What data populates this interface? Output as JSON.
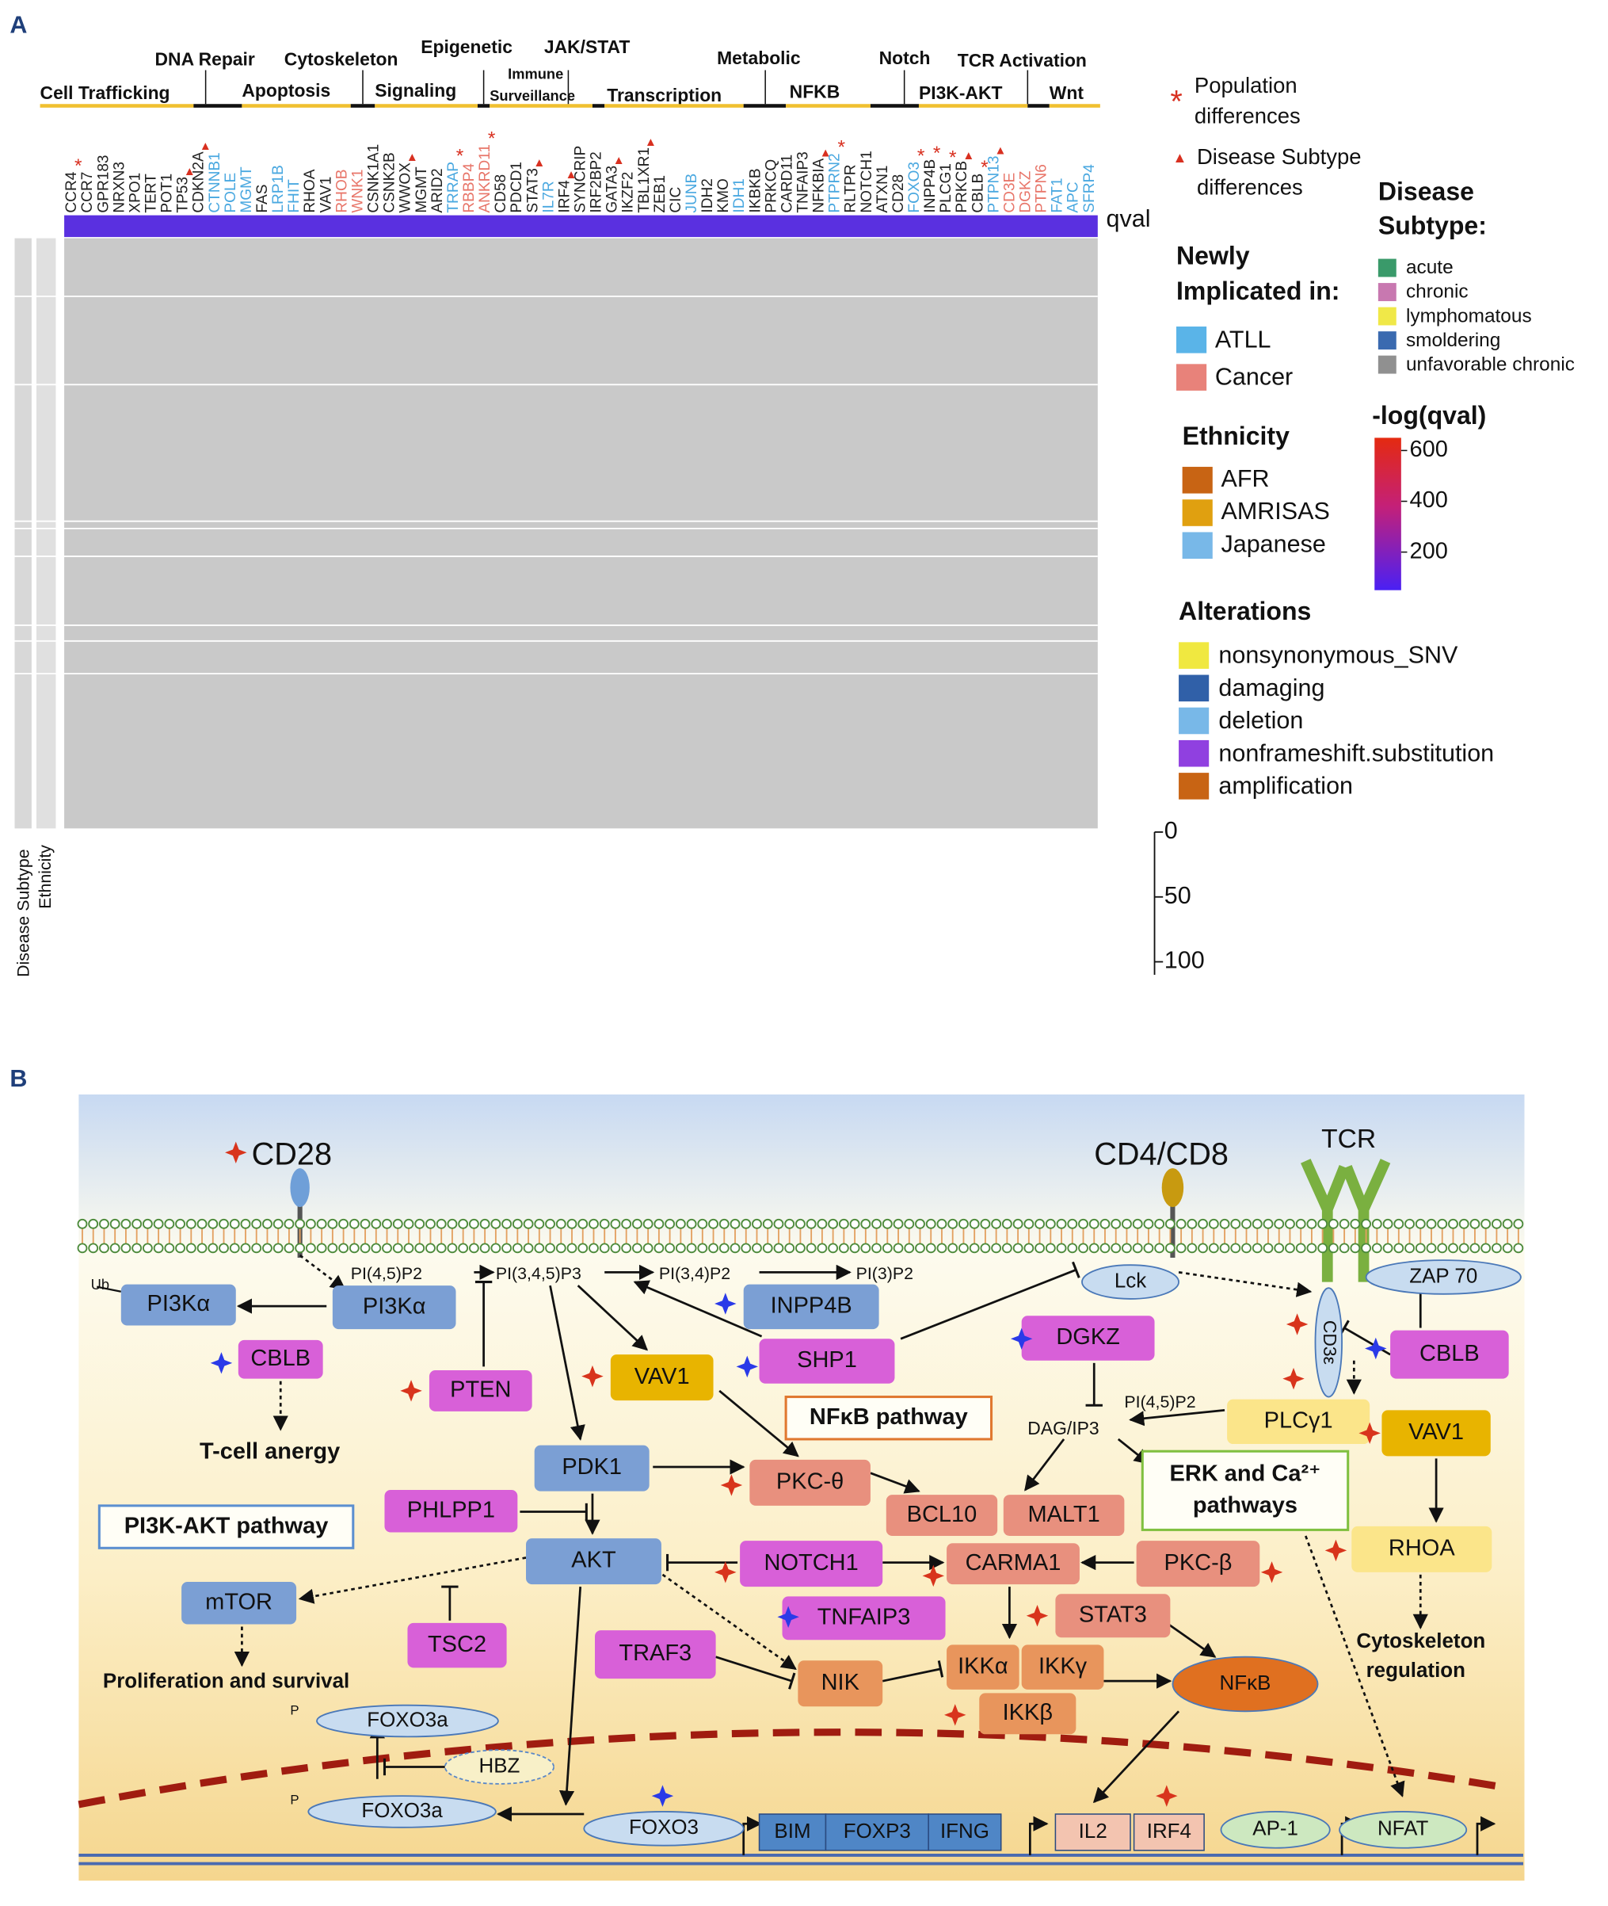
{
  "panel_a": {
    "label": "A",
    "pathways": [
      [
        "Cell Trafficking"
      ],
      [
        "DNA Repair"
      ],
      [
        "Cytoskeleton"
      ],
      [
        "Apoptosis"
      ],
      [
        "Epigenetic"
      ],
      [
        "Signaling"
      ],
      [
        "JAK/STAT"
      ],
      [
        "Immune",
        "Surveillance"
      ],
      [
        "Transcription"
      ],
      [
        "Metabolic"
      ],
      [
        "NFKB"
      ],
      [
        "Notch"
      ],
      [
        "TCR Activation"
      ],
      [
        "PI3K-AKT"
      ],
      [
        "Wnt"
      ]
    ],
    "genes": [
      {
        "name": "CCR4",
        "color": "#222222",
        "mark": "*"
      },
      {
        "name": "CCR7",
        "color": "#222222"
      },
      {
        "name": "GPR183",
        "color": "#222222"
      },
      {
        "name": "NRXN3",
        "color": "#222222"
      },
      {
        "name": "XPO1",
        "color": "#222222"
      },
      {
        "name": "TERT",
        "color": "#222222"
      },
      {
        "name": "POT1",
        "color": "#222222"
      },
      {
        "name": "TP53",
        "color": "#222222",
        "mark": "▲"
      },
      {
        "name": "CDKN2A",
        "color": "#222222",
        "mark": "▲"
      },
      {
        "name": "CTNNB1",
        "color": "#4aa8e0"
      },
      {
        "name": "POLE",
        "color": "#4aa8e0"
      },
      {
        "name": "MGMT",
        "color": "#4aa8e0"
      },
      {
        "name": "FAS",
        "color": "#222222"
      },
      {
        "name": "LRP1B",
        "color": "#4aa8e0"
      },
      {
        "name": "FHIT",
        "color": "#4aa8e0"
      },
      {
        "name": "RHOA",
        "color": "#222222"
      },
      {
        "name": "VAV1",
        "color": "#222222"
      },
      {
        "name": "RHOB",
        "color": "#e8766a"
      },
      {
        "name": "WNK1",
        "color": "#e8766a"
      },
      {
        "name": "CSNK1A1",
        "color": "#222222"
      },
      {
        "name": "CSNK2B",
        "color": "#222222"
      },
      {
        "name": "WWOX",
        "color": "#222222",
        "mark": "▲"
      },
      {
        "name": "MGMT",
        "color": "#222222"
      },
      {
        "name": "ARID2",
        "color": "#222222"
      },
      {
        "name": "TRRAP",
        "color": "#4aa8e0",
        "mark": "*"
      },
      {
        "name": "RBBP4",
        "color": "#e8766a"
      },
      {
        "name": "ANKRD11",
        "color": "#e8766a",
        "mark": "*"
      },
      {
        "name": "CD58",
        "color": "#222222"
      },
      {
        "name": "PDCD1",
        "color": "#222222"
      },
      {
        "name": "STAT3",
        "color": "#222222",
        "mark": "▲"
      },
      {
        "name": "IL7R",
        "color": "#4aa8e0"
      },
      {
        "name": "IRF4",
        "color": "#222222",
        "mark": "▲"
      },
      {
        "name": "SYNCRIP",
        "color": "#222222"
      },
      {
        "name": "IRF2BP2",
        "color": "#222222"
      },
      {
        "name": "GATA3",
        "color": "#222222",
        "mark": "▲"
      },
      {
        "name": "IKZF2",
        "color": "#222222"
      },
      {
        "name": "TBL1XR1",
        "color": "#222222",
        "mark": "▲"
      },
      {
        "name": "ZEB1",
        "color": "#222222"
      },
      {
        "name": "CIC",
        "color": "#222222"
      },
      {
        "name": "JUNB",
        "color": "#4aa8e0"
      },
      {
        "name": "IDH2",
        "color": "#222222"
      },
      {
        "name": "KMO",
        "color": "#222222"
      },
      {
        "name": "IDH1",
        "color": "#4aa8e0"
      },
      {
        "name": "IKBKB",
        "color": "#222222"
      },
      {
        "name": "PRKCQ",
        "color": "#222222"
      },
      {
        "name": "CARD11",
        "color": "#222222"
      },
      {
        "name": "TNFAIP3",
        "color": "#222222"
      },
      {
        "name": "NFKBIA",
        "color": "#222222",
        "mark": "▲"
      },
      {
        "name": "PTPRN2",
        "color": "#4aa8e0",
        "mark": "*"
      },
      {
        "name": "RLTPR",
        "color": "#222222"
      },
      {
        "name": "NOTCH1",
        "color": "#222222"
      },
      {
        "name": "ATXN1",
        "color": "#222222"
      },
      {
        "name": "CD28",
        "color": "#222222"
      },
      {
        "name": "FOXO3",
        "color": "#4aa8e0",
        "mark": "*"
      },
      {
        "name": "INPP4B",
        "color": "#222222",
        "mark": "*"
      },
      {
        "name": "PLCG1",
        "color": "#222222",
        "mark": "*"
      },
      {
        "name": "PRKCB",
        "color": "#222222",
        "mark": "▲"
      },
      {
        "name": "CBLB",
        "color": "#222222",
        "mark": "*"
      },
      {
        "name": "PTPN13",
        "color": "#4aa8e0",
        "mark": "▲"
      },
      {
        "name": "CD3E",
        "color": "#e8766a"
      },
      {
        "name": "DGKZ",
        "color": "#e8766a"
      },
      {
        "name": "PTPN6",
        "color": "#e8766a"
      },
      {
        "name": "FAT1",
        "color": "#4aa8e0"
      },
      {
        "name": "APC",
        "color": "#4aa8e0"
      },
      {
        "name": "SFRP4",
        "color": "#4aa8e0"
      }
    ],
    "qval_label": "qval",
    "sidebar_labels": [
      "Disease Subtype",
      "Ethnicity"
    ],
    "bar_axis": {
      "ylim": [
        0,
        110
      ],
      "yticks": [
        0,
        50,
        100
      ]
    },
    "legend": {
      "population": {
        "symbol": "*",
        "lines": [
          "Population",
          "differences"
        ]
      },
      "subtype_diff": {
        "symbol": "▲",
        "lines": [
          "Disease Subtype",
          "differences"
        ]
      },
      "newly": {
        "title": [
          "Newly",
          "Implicated in:"
        ],
        "items": [
          {
            "label": "ATLL",
            "color": "#5ab4e8"
          },
          {
            "label": "Cancer",
            "color": "#e8827a"
          }
        ]
      },
      "subtype": {
        "title": [
          "Disease",
          "Subtype:"
        ],
        "items": [
          {
            "label": "acute",
            "color": "#3a9a6a"
          },
          {
            "label": "chronic",
            "color": "#c878b0"
          },
          {
            "label": "lymphomatous",
            "color": "#f0e848"
          },
          {
            "label": "smoldering",
            "color": "#3a6ab0"
          },
          {
            "label": "unfavorable chronic",
            "color": "#909090"
          }
        ]
      },
      "ethnicity": {
        "title": "Ethnicity",
        "items": [
          {
            "label": "AFR",
            "color": "#c86414"
          },
          {
            "label": "AMRISAS",
            "color": "#e0a010"
          },
          {
            "label": "Japanese",
            "color": "#78b8e8"
          }
        ]
      },
      "qval": {
        "title": "-log(qval)",
        "lim": [
          50,
          650
        ],
        "ticks": [
          600,
          400,
          200
        ]
      },
      "alterations": {
        "title": "Alterations",
        "items": [
          {
            "label": "nonsynonymous_SNV",
            "color": "#f0e840"
          },
          {
            "label": "damaging",
            "color": "#3060a8"
          },
          {
            "label": "deletion",
            "color": "#78b8e8"
          },
          {
            "label": "nonframeshift.substitution",
            "color": "#9040e0"
          },
          {
            "label": "amplification",
            "color": "#c86414"
          }
        ]
      }
    }
  },
  "panel_b": {
    "label": "B",
    "nodes": [
      {
        "label": "PI3Kα",
        "color": "#7b9fd4"
      },
      {
        "label": "PI3Kα",
        "color": "#7b9fd4"
      },
      {
        "label": "CBLB",
        "color": "#d860d8"
      },
      {
        "label": "PTEN",
        "color": "#d860d8"
      },
      {
        "label": "VAV1",
        "color": "#e8b400"
      },
      {
        "label": "INPP4B",
        "color": "#7b9fd4"
      },
      {
        "label": "SHP1",
        "color": "#d860d8"
      },
      {
        "label": "DGKZ",
        "color": "#d860d8"
      },
      {
        "label": "PDK1",
        "color": "#7b9fd4"
      },
      {
        "label": "PHLPP1",
        "color": "#d860d8"
      },
      {
        "label": "AKT",
        "color": "#7b9fd4"
      },
      {
        "label": "PKC-θ",
        "color": "#e8907e"
      },
      {
        "label": "BCL10",
        "color": "#e8907e"
      },
      {
        "label": "MALT1",
        "color": "#e8907e"
      },
      {
        "label": "NOTCH1",
        "color": "#d860d8"
      },
      {
        "label": "CARMA1",
        "color": "#e8907e"
      },
      {
        "label": "PKC-β",
        "color": "#e8907e"
      },
      {
        "label": "mTOR",
        "color": "#7b9fd4"
      },
      {
        "label": "TSC2",
        "color": "#d860d8"
      },
      {
        "label": "TNFAIP3",
        "color": "#d860d8"
      },
      {
        "label": "STAT3",
        "color": "#e8907e"
      },
      {
        "label": "TRAF3",
        "color": "#d860d8"
      },
      {
        "label": "NIK",
        "color": "#e8955c"
      },
      {
        "label": "IKKα",
        "color": "#e8955c"
      },
      {
        "label": "IKKγ",
        "color": "#e8955c"
      },
      {
        "label": "IKKβ",
        "color": "#e8955c"
      },
      {
        "label": "NFκB",
        "color": "#e07020"
      },
      {
        "label": "PLCγ1",
        "color": "#fbe58a"
      },
      {
        "label": "VAV1",
        "color": "#e8b400"
      },
      {
        "label": "RHOA",
        "color": "#fbe58a"
      },
      {
        "label": "CBLB",
        "color": "#d860d8"
      },
      {
        "label": "CD3ε",
        "color": "#c8dcf0"
      },
      {
        "label": "Lck",
        "color": "#c8dcf0"
      },
      {
        "label": "ZAP 70",
        "color": "#c8dcf0"
      },
      {
        "label": "FOXO3a",
        "color": "#c8dcf0"
      },
      {
        "label": "HBZ",
        "color": "#f8f0c8"
      },
      {
        "label": "FOXO3a",
        "color": "#c8dcf0"
      },
      {
        "label": "FOXO3",
        "color": "#c8dcf0"
      },
      {
        "label": "BIM",
        "color": "#4f86c6"
      },
      {
        "label": "FOXP3",
        "color": "#4f86c6"
      },
      {
        "label": "IFNG",
        "color": "#4f86c6"
      },
      {
        "label": "IL2",
        "color": "#f3c4b0"
      },
      {
        "label": "IRF4",
        "color": "#f3c4b0"
      },
      {
        "label": "AP-1",
        "color": "#cde8c0"
      },
      {
        "label": "NFAT",
        "color": "#cde8c0"
      }
    ],
    "texts": [
      "CD28",
      "CD4/CD8",
      "TCR",
      "PI(4,5)P2",
      "PI(3,4,5)P3",
      "PI(3,4)P2",
      "PI(3)P2",
      "Ub",
      "T-cell anergy",
      "DAG/IP3",
      "PI(4,5)P2",
      "Proliferation and survival",
      "Cytoskeleton",
      "regulation",
      "P",
      "P"
    ],
    "boxes": [
      [
        "PI3K-AKT pathway"
      ],
      [
        "NFκB pathway"
      ],
      [
        "ERK and Ca²⁺",
        "pathways"
      ]
    ]
  }
}
